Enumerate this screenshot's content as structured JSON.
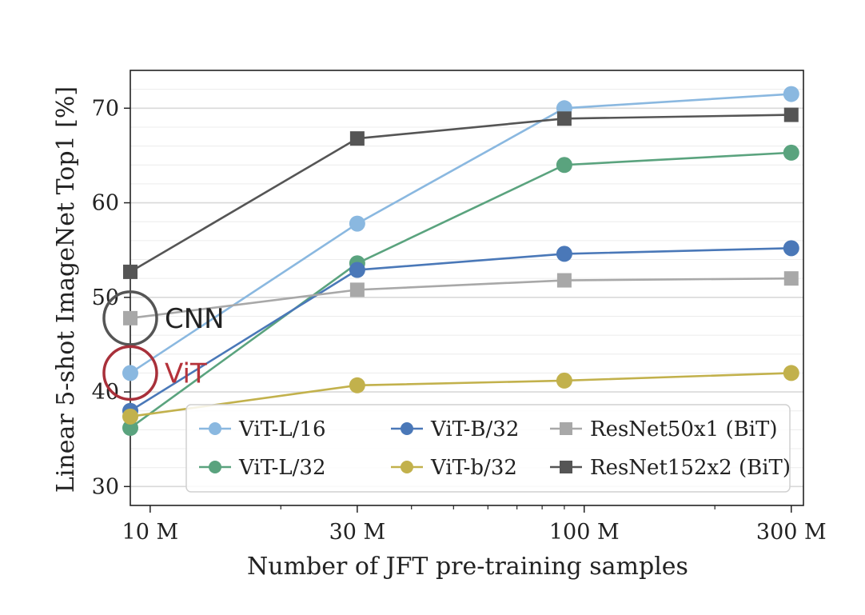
{
  "chart_data": {
    "type": "line",
    "xlabel": "Number of JFT pre-training samples",
    "ylabel": "Linear 5-shot ImageNet Top1 [%]",
    "x_scale": "log",
    "xlim": [
      9,
      320
    ],
    "ylim": [
      28,
      74
    ],
    "x_ticks": [
      {
        "value": 10,
        "label": "10 M"
      },
      {
        "value": 30,
        "label": "30 M"
      },
      {
        "value": 100,
        "label": "100 M"
      },
      {
        "value": 300,
        "label": "300 M"
      }
    ],
    "y_ticks": [
      {
        "value": 30,
        "label": "30"
      },
      {
        "value": 40,
        "label": "40"
      },
      {
        "value": 50,
        "label": "50"
      },
      {
        "value": 60,
        "label": "60"
      },
      {
        "value": 70,
        "label": "70"
      }
    ],
    "grid": "horizontal",
    "legend_position": "bottom-right",
    "x": [
      9,
      30,
      90,
      300
    ],
    "series": [
      {
        "name": "ViT-L/16",
        "marker": "circle",
        "color": "#8ab8e0",
        "values": [
          42.0,
          57.8,
          70.0,
          71.5
        ]
      },
      {
        "name": "ViT-L/32",
        "marker": "circle",
        "color": "#5aa37e",
        "values": [
          36.2,
          53.6,
          64.0,
          65.3
        ]
      },
      {
        "name": "ViT-B/32",
        "marker": "circle",
        "color": "#4a78b8",
        "values": [
          38.0,
          52.9,
          54.6,
          55.2
        ]
      },
      {
        "name": "ViT-b/32",
        "marker": "circle",
        "color": "#c2b14c",
        "values": [
          37.4,
          40.7,
          41.2,
          42.0
        ]
      },
      {
        "name": "ResNet50x1 (BiT)",
        "marker": "square",
        "color": "#a8a8a8",
        "values": [
          47.8,
          50.8,
          51.8,
          52.0
        ]
      },
      {
        "name": "ResNet152x2 (BiT)",
        "marker": "square",
        "color": "#555555",
        "values": [
          52.7,
          66.8,
          68.9,
          69.3
        ]
      }
    ],
    "annotations": [
      {
        "text": "CNN",
        "color": "#222222",
        "circle_color": "#555555"
      },
      {
        "text": "ViT",
        "color": "#b5323a",
        "circle_color": "#a8303a"
      }
    ]
  }
}
